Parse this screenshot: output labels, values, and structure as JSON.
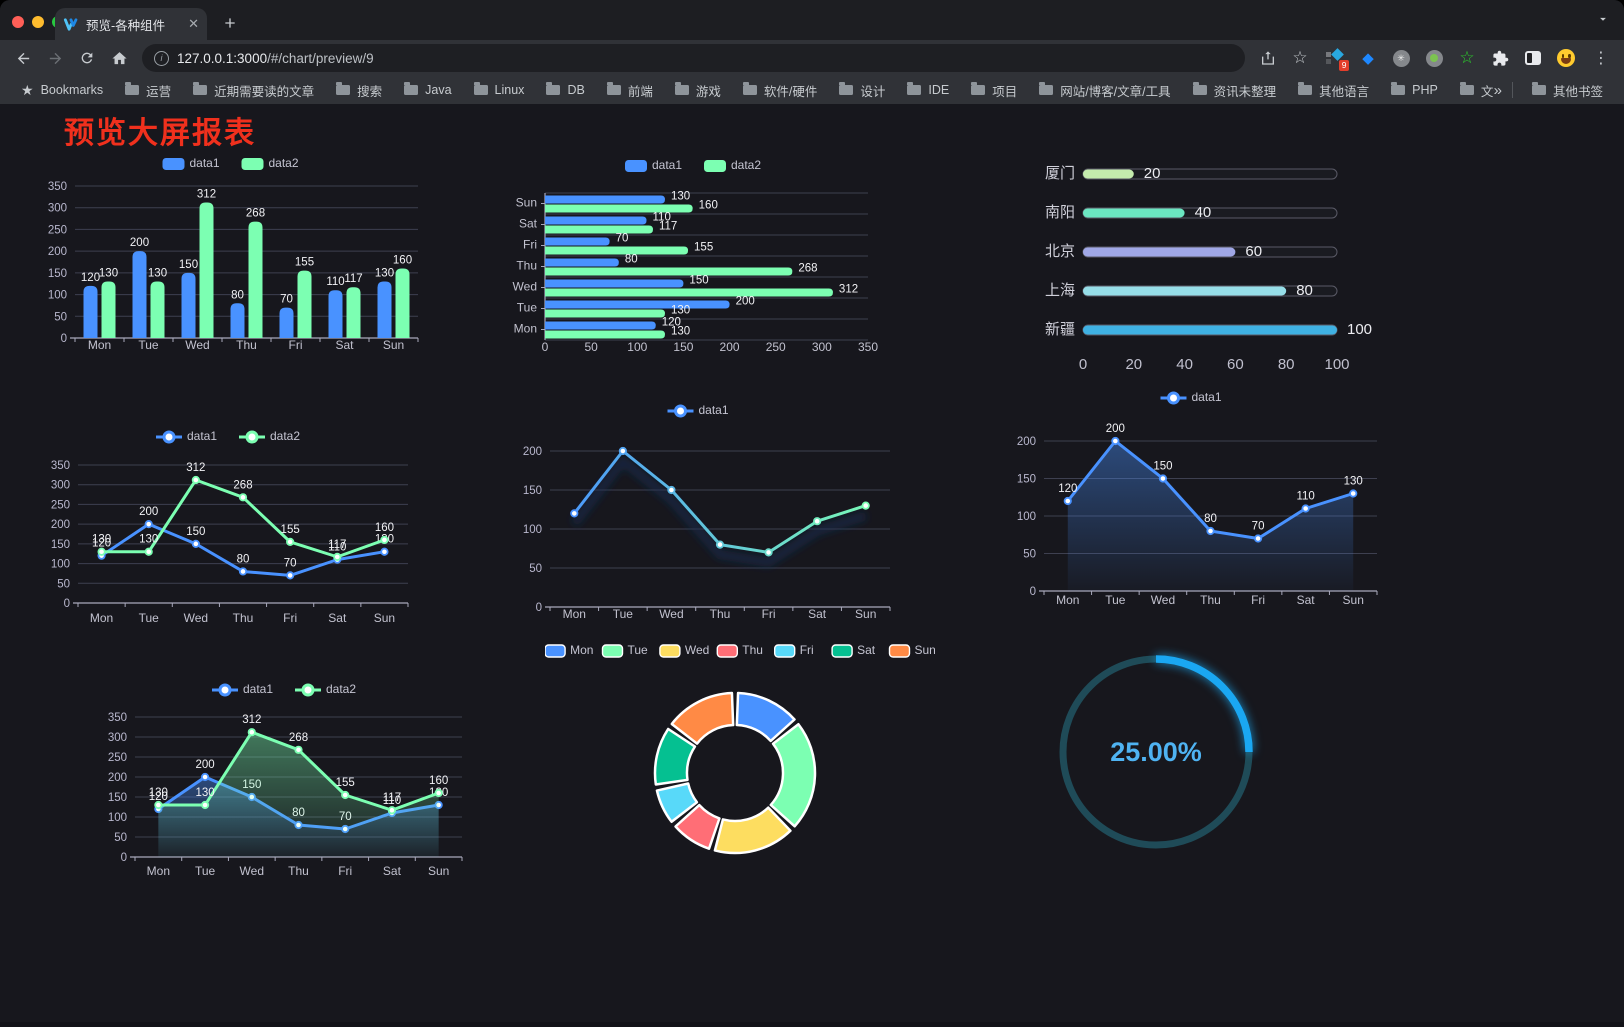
{
  "browser": {
    "traffic_lights": {
      "close": "#FF5F57",
      "minimize": "#FEBC2E",
      "zoom": "#28C840"
    },
    "tab": {
      "title": "预览-各种组件",
      "close_glyph": "✕",
      "new_tab_glyph": "+"
    },
    "toolbar": {
      "url_host": "127.0.0.1:3000",
      "url_path": "/#/chart/preview/9"
    },
    "extensions": [
      {
        "icon": "grid-diamond",
        "badge": "9"
      },
      {
        "icon": "gem"
      },
      {
        "icon": "asterisk-circle"
      },
      {
        "icon": "green-dot-circle"
      },
      {
        "icon": "green-star"
      },
      {
        "icon": "puzzle"
      },
      {
        "icon": "panel"
      },
      {
        "icon": "emoji"
      }
    ],
    "bookmarks": {
      "root_label": "Bookmarks",
      "folders": [
        "运营",
        "近期需要读的文章",
        "搜索",
        "Java",
        "Linux",
        "DB",
        "前端",
        "游戏",
        "软件/硬件",
        "设计",
        "IDE",
        "项目",
        "网站/博客/文章/工具",
        "资讯未整理",
        "其他语言",
        "PHP",
        "文件服务器"
      ],
      "overflow": "»",
      "other_label": "其他书签"
    }
  },
  "page": {
    "title": "预览大屏报表",
    "title_color": "#F0301D",
    "background": "#17171D"
  },
  "palette": {
    "data1": "#4992FF",
    "data2": "#7CFFB2"
  },
  "chart_data": [
    {
      "id": "bar-vertical",
      "type": "bar",
      "categories": [
        "Mon",
        "Tue",
        "Wed",
        "Thu",
        "Fri",
        "Sat",
        "Sun"
      ],
      "series": [
        {
          "name": "data1",
          "color": "#4992FF",
          "values": [
            120,
            200,
            150,
            80,
            70,
            110,
            130
          ]
        },
        {
          "name": "data2",
          "color": "#7CFFB2",
          "values": [
            130,
            130,
            312,
            268,
            155,
            117,
            160
          ]
        }
      ],
      "ylim": [
        0,
        350
      ],
      "ytick_step": 50,
      "grid": true,
      "legend_position": "top",
      "value_labels": true
    },
    {
      "id": "bar-horizontal",
      "type": "bar-horizontal",
      "categories": [
        "Mon",
        "Tue",
        "Wed",
        "Thu",
        "Fri",
        "Sat",
        "Sun"
      ],
      "series": [
        {
          "name": "data1",
          "color": "#4992FF",
          "values": [
            120,
            200,
            150,
            80,
            70,
            110,
            130
          ]
        },
        {
          "name": "data2",
          "color": "#7CFFB2",
          "values": [
            130,
            130,
            312,
            268,
            155,
            117,
            160
          ]
        }
      ],
      "xlim": [
        0,
        350
      ],
      "xtick_step": 50,
      "grid": true,
      "legend_position": "top",
      "value_labels": true
    },
    {
      "id": "progress-list",
      "type": "progress",
      "items": [
        {
          "label": "厦门",
          "value": 20,
          "color": "#C4EBAD"
        },
        {
          "label": "南阳",
          "value": 40,
          "color": "#6BE6C1"
        },
        {
          "label": "北京",
          "value": 60,
          "color": "#A0A7E6"
        },
        {
          "label": "上海",
          "value": 80,
          "color": "#96DEE8"
        },
        {
          "label": "新疆",
          "value": 100,
          "color": "#3FB1E3"
        }
      ],
      "xlim": [
        0,
        100
      ],
      "xticks": [
        0,
        20,
        40,
        60,
        80,
        100
      ],
      "value_labels": true
    },
    {
      "id": "line-two-series",
      "type": "line",
      "categories": [
        "Mon",
        "Tue",
        "Wed",
        "Thu",
        "Fri",
        "Sat",
        "Sun"
      ],
      "series": [
        {
          "name": "data1",
          "color": "#4992FF",
          "values": [
            120,
            200,
            150,
            80,
            70,
            110,
            130
          ]
        },
        {
          "name": "data2",
          "color": "#7CFFB2",
          "values": [
            130,
            130,
            312,
            268,
            155,
            117,
            160
          ]
        }
      ],
      "ylim": [
        0,
        350
      ],
      "ytick_step": 50,
      "grid": true,
      "legend_position": "top",
      "value_labels": true
    },
    {
      "id": "line-gradient",
      "type": "line",
      "categories": [
        "Mon",
        "Tue",
        "Wed",
        "Thu",
        "Fri",
        "Sat",
        "Sun"
      ],
      "series": [
        {
          "name": "data1",
          "color_gradient": [
            "#4992FF",
            "#7CFFB2"
          ],
          "values": [
            120,
            200,
            150,
            80,
            70,
            110,
            130
          ],
          "shadow": true
        }
      ],
      "ylim": [
        0,
        200
      ],
      "ytick_step": 50,
      "grid": true,
      "legend_position": "top",
      "value_labels": false
    },
    {
      "id": "line-area",
      "type": "line",
      "categories": [
        "Mon",
        "Tue",
        "Wed",
        "Thu",
        "Fri",
        "Sat",
        "Sun"
      ],
      "series": [
        {
          "name": "data1",
          "color": "#4992FF",
          "values": [
            120,
            200,
            150,
            80,
            70,
            110,
            130
          ],
          "area": true
        }
      ],
      "ylim": [
        0,
        200
      ],
      "ytick_step": 50,
      "grid": true,
      "legend_position": "top",
      "value_labels": true
    },
    {
      "id": "line-area-two",
      "type": "line",
      "categories": [
        "Mon",
        "Tue",
        "Wed",
        "Thu",
        "Fri",
        "Sat",
        "Sun"
      ],
      "series": [
        {
          "name": "data1",
          "color": "#4992FF",
          "values": [
            120,
            200,
            150,
            80,
            70,
            110,
            130
          ],
          "area": true
        },
        {
          "name": "data2",
          "color": "#7CFFB2",
          "values": [
            130,
            130,
            312,
            268,
            155,
            117,
            160
          ],
          "area": true
        }
      ],
      "ylim": [
        0,
        350
      ],
      "ytick_step": 50,
      "grid": true,
      "legend_position": "top",
      "value_labels": true
    },
    {
      "id": "donut",
      "type": "pie",
      "inner_radius_ratio": 0.6,
      "legend_position": "top",
      "items": [
        {
          "label": "Mon",
          "value": 120,
          "color": "#4992FF"
        },
        {
          "label": "Tue",
          "value": 200,
          "color": "#7CFFB2"
        },
        {
          "label": "Wed",
          "value": 150,
          "color": "#FDDD60"
        },
        {
          "label": "Thu",
          "value": 80,
          "color": "#FF6E76"
        },
        {
          "label": "Fri",
          "value": 70,
          "color": "#58D9F9"
        },
        {
          "label": "Sat",
          "value": 110,
          "color": "#05C091"
        },
        {
          "label": "Sun",
          "value": 130,
          "color": "#FF8A45"
        }
      ]
    },
    {
      "id": "gauge",
      "type": "gauge",
      "value": 25,
      "display": "25.00%",
      "color": "#1AA7F2",
      "track_color": "#1F4B58",
      "text_color": "#4FB3F2"
    }
  ]
}
